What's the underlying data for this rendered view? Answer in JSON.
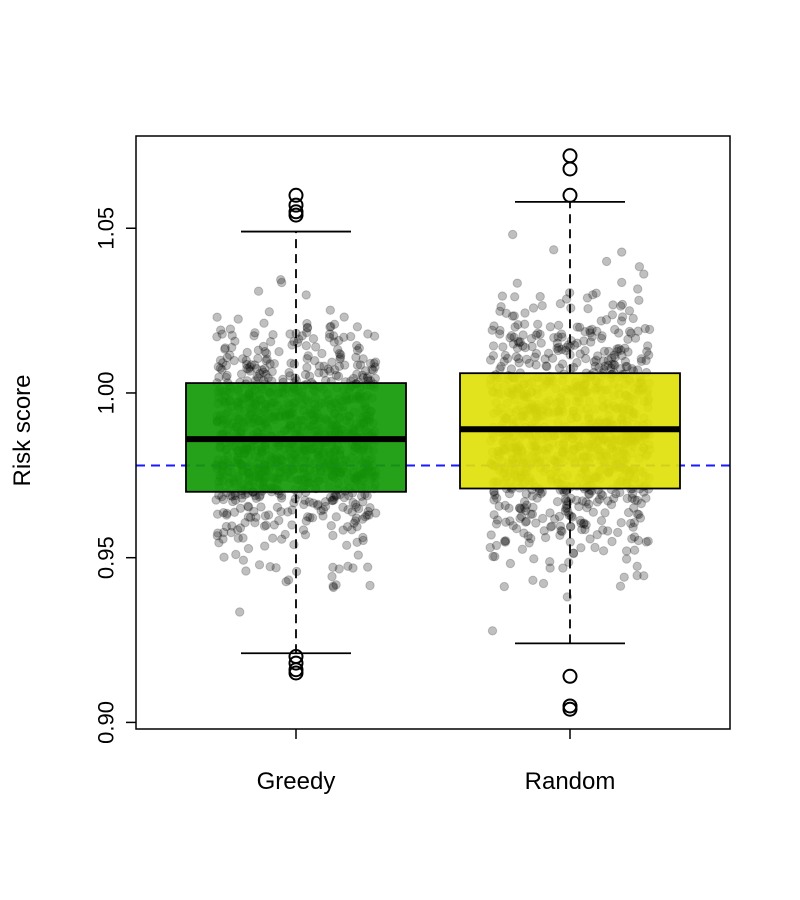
{
  "chart_data": {
    "type": "boxplot",
    "ylabel": "Risk score",
    "ylim": [
      0.898,
      1.078
    ],
    "y_ticks": [
      0.9,
      0.95,
      1.0,
      1.05
    ],
    "y_tick_labels": [
      "0.90",
      "0.95",
      "1.00",
      "1.05"
    ],
    "categories": [
      "Greedy",
      "Random"
    ],
    "reference_line": {
      "y": 0.978,
      "color": "#1a1aff",
      "style": "dashed"
    },
    "series": [
      {
        "label": "Greedy",
        "color": "#139a06",
        "whisker_low": 0.921,
        "q1": 0.97,
        "median": 0.986,
        "q3": 1.003,
        "whisker_high": 1.049,
        "outliers": [
          0.915,
          0.916,
          0.918,
          0.92,
          1.054,
          1.055,
          1.057,
          1.06
        ],
        "jitter_points": {
          "count": 1000,
          "range": [
            0.914,
            1.06
          ],
          "color": "#000000",
          "opacity": 0.25
        }
      },
      {
        "label": "Random",
        "color": "#e0e00a",
        "whisker_low": 0.924,
        "q1": 0.971,
        "median": 0.989,
        "q3": 1.006,
        "whisker_high": 1.058,
        "outliers": [
          0.904,
          0.905,
          0.914,
          1.06,
          1.068,
          1.072
        ],
        "jitter_points": {
          "count": 1000,
          "range": [
            0.904,
            1.072
          ],
          "color": "#000000",
          "opacity": 0.25
        }
      }
    ]
  }
}
